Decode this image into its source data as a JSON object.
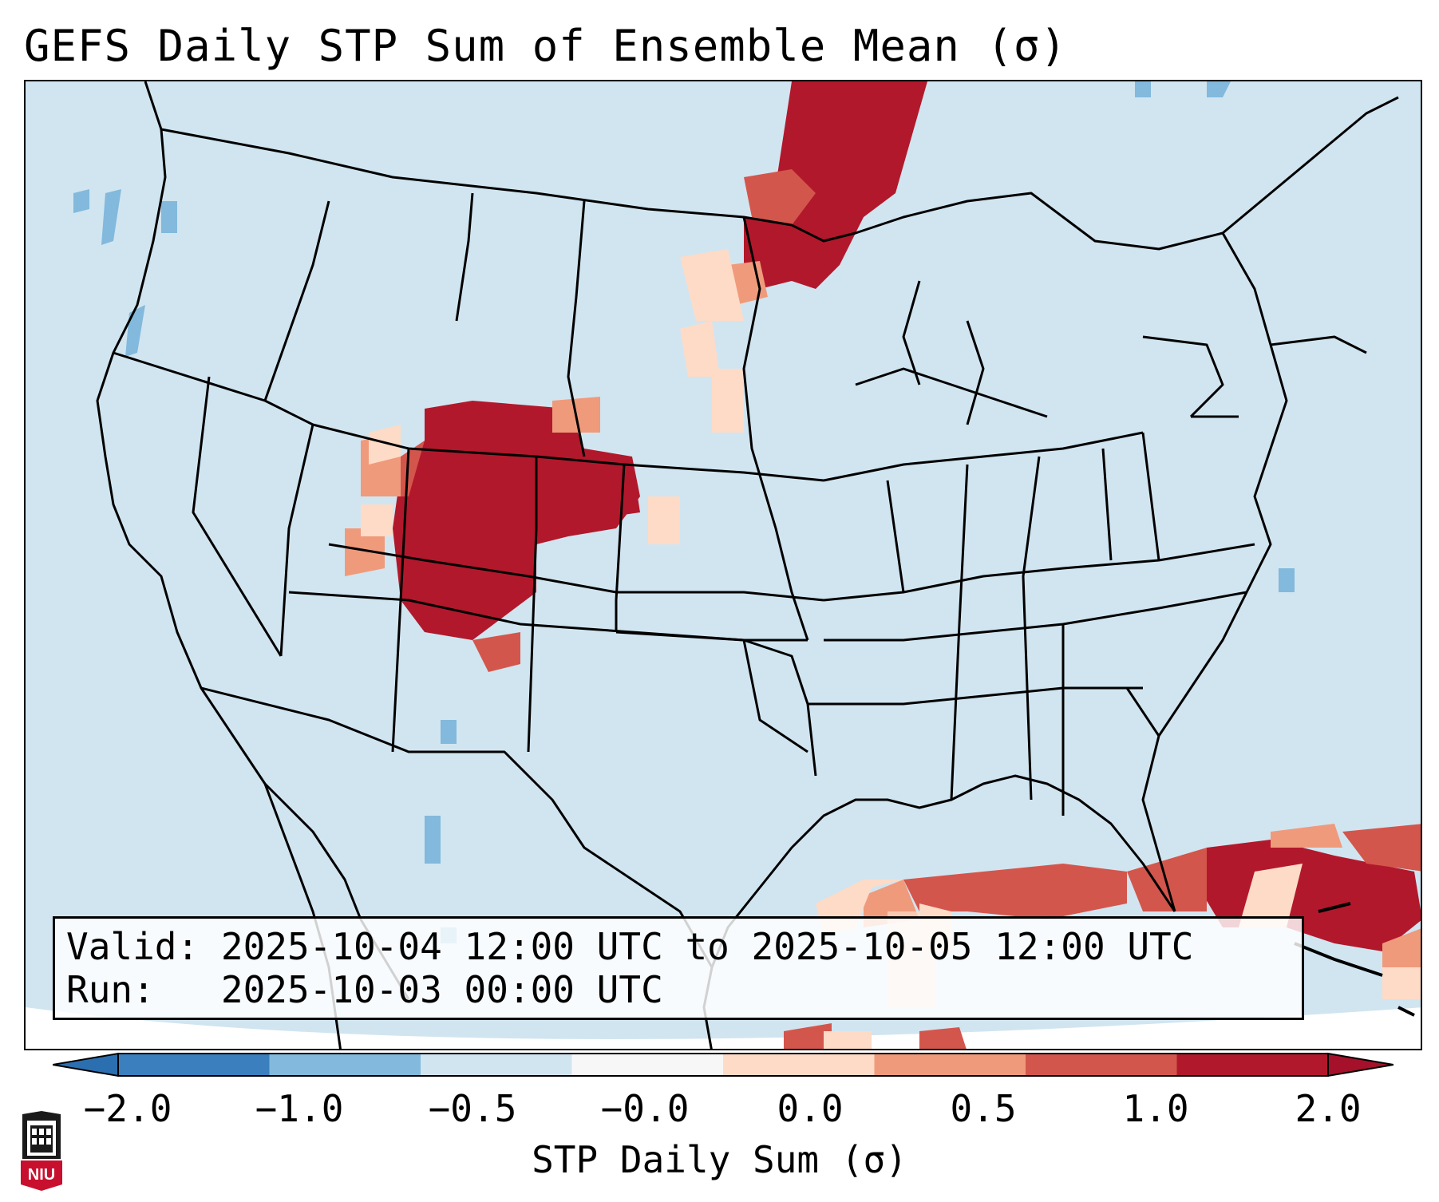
{
  "title": "GEFS Daily STP Sum of Ensemble Mean (σ)",
  "info": {
    "valid_label": "Valid:",
    "valid_range": "2025-10-04 12:00 UTC to 2025-10-05 12:00 UTC",
    "run_label": "Run:",
    "run_time": "2025-10-03 00:00 UTC"
  },
  "colorbar": {
    "label": "STP Daily Sum (σ)",
    "ticks": [
      "−2.0",
      "−1.0",
      "−0.5",
      "−0.0",
      "0.0",
      "0.5",
      "1.0",
      "2.0"
    ],
    "colors": [
      "#3b7fbf",
      "#82b9dc",
      "#d1e5f0",
      "#f7f7f7",
      "#fddbc7",
      "#f09a7c",
      "#d3564c",
      "#b2182b"
    ],
    "extend_low_color": "#2b6fb0",
    "extend_high_color": "#a5102a"
  },
  "map": {
    "ocean_color": "#d1e5f0",
    "outside_color": "#ffffff",
    "border_color": "#000000"
  },
  "logo": {
    "text": "NIU"
  }
}
